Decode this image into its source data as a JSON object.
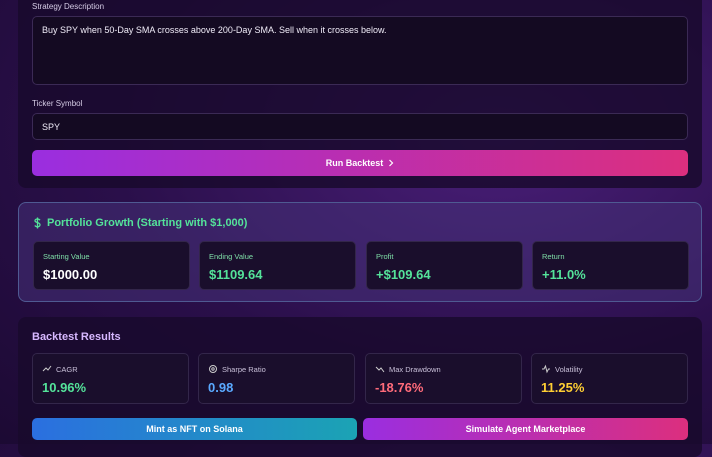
{
  "form": {
    "strategy_label": "Strategy Description",
    "strategy_text": "Buy SPY when 50-Day SMA crosses above 200-Day SMA. Sell when it crosses below.",
    "ticker_label": "Ticker Symbol",
    "ticker_value": "SPY",
    "run_button": "Run Backtest"
  },
  "portfolio": {
    "title": "Portfolio Growth (Starting with $1,000)",
    "stats": [
      {
        "label": "Starting Value",
        "value": "$1000.00"
      },
      {
        "label": "Ending Value",
        "value": "$1109.64"
      },
      {
        "label": "Profit",
        "value": "+$109.64"
      },
      {
        "label": "Return",
        "value": "+11.0%"
      }
    ]
  },
  "results": {
    "title": "Backtest Results",
    "metrics": [
      {
        "label": "CAGR",
        "value": "10.96%"
      },
      {
        "label": "Sharpe Ratio",
        "value": "0.98"
      },
      {
        "label": "Max Drawdown",
        "value": "-18.76%"
      },
      {
        "label": "Volatility",
        "value": "11.25%"
      }
    ]
  },
  "actions": {
    "mint": "Mint as NFT on Solana",
    "simulate": "Simulate Agent Marketplace"
  }
}
